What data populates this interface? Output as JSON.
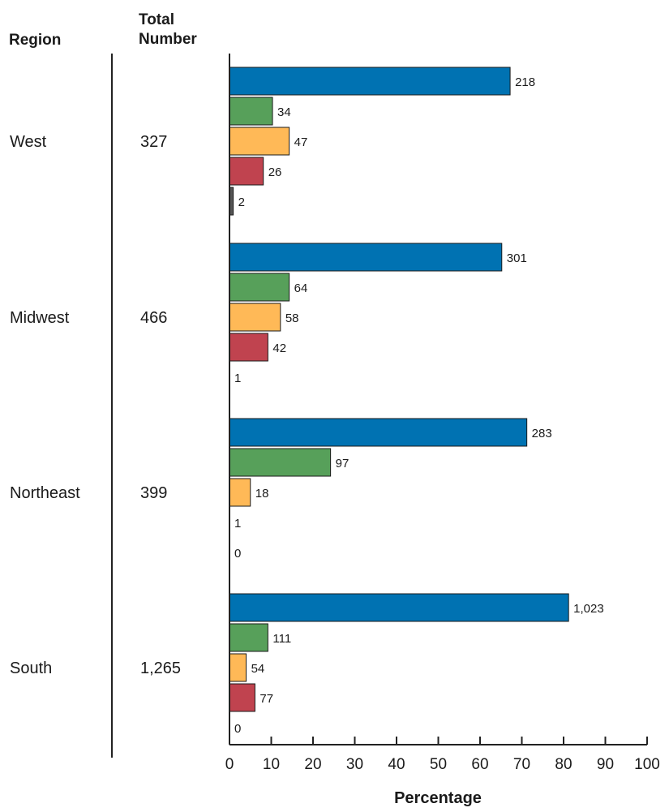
{
  "chart_data": {
    "type": "bar",
    "orientation": "horizontal",
    "headers": {
      "region": "Region",
      "total_line1": "Total",
      "total_line2": "Number"
    },
    "xlabel": "Percentage",
    "xlim": [
      0,
      100
    ],
    "xticks": [
      "0",
      "10",
      "20",
      "30",
      "40",
      "50",
      "60",
      "70",
      "80",
      "90",
      "100"
    ],
    "colors": [
      "#0072b2",
      "#57a05a",
      "#ffb957",
      "#c0434f",
      "#555555"
    ],
    "regions": [
      {
        "name": "West",
        "total": "327",
        "bars": [
          {
            "pct": 67.2,
            "label": "218"
          },
          {
            "pct": 10.3,
            "label": "34"
          },
          {
            "pct": 14.3,
            "label": "47"
          },
          {
            "pct": 8.1,
            "label": "26"
          },
          {
            "pct": 0.9,
            "label": "2"
          }
        ]
      },
      {
        "name": "Midwest",
        "total": "466",
        "bars": [
          {
            "pct": 65.2,
            "label": "301"
          },
          {
            "pct": 14.3,
            "label": "64"
          },
          {
            "pct": 12.2,
            "label": "58"
          },
          {
            "pct": 9.2,
            "label": "42"
          },
          {
            "pct": 0.0,
            "label": "1"
          }
        ]
      },
      {
        "name": "Northeast",
        "total": "399",
        "bars": [
          {
            "pct": 71.2,
            "label": "283"
          },
          {
            "pct": 24.2,
            "label": "97"
          },
          {
            "pct": 5.0,
            "label": "18"
          },
          {
            "pct": 0.0,
            "label": "1"
          },
          {
            "pct": 0.0,
            "label": "0"
          }
        ]
      },
      {
        "name": "South",
        "total": "1,265",
        "bars": [
          {
            "pct": 81.2,
            "label": "1,023"
          },
          {
            "pct": 9.2,
            "label": "111"
          },
          {
            "pct": 4.0,
            "label": "54"
          },
          {
            "pct": 6.1,
            "label": "77"
          },
          {
            "pct": 0.0,
            "label": "0"
          }
        ]
      }
    ]
  }
}
